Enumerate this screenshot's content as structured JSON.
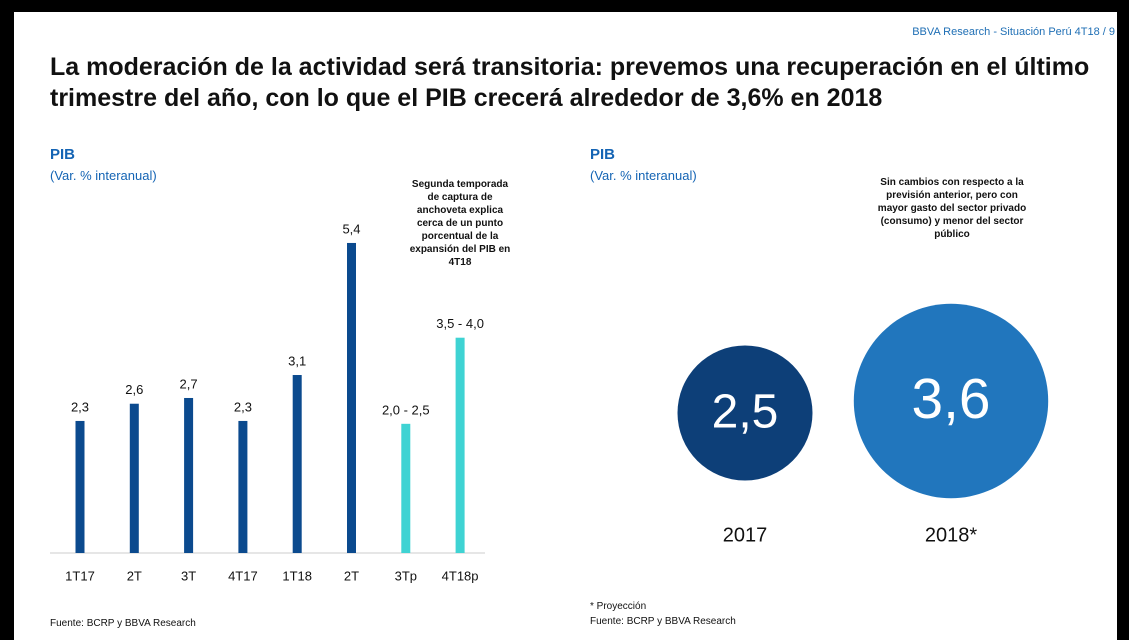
{
  "header": "BBVA Research - Situación Perú 4T18 / 9",
  "title": "La moderación de la actividad será transitoria: prevemos una recuperación en el último trimestre del año, con lo que el PIB crecerá alrededor de 3,6% en 2018",
  "chart_data": [
    {
      "type": "bar",
      "title": "PIB",
      "subtitle": "(Var. % interanual)",
      "categories": [
        "1T17",
        "2T",
        "3T",
        "4T17",
        "1T18",
        "2T",
        "3Tp",
        "4T18p"
      ],
      "values": [
        2.3,
        2.6,
        2.7,
        2.3,
        3.1,
        5.4,
        2.25,
        3.75
      ],
      "value_labels": [
        "2,3",
        "2,6",
        "2,7",
        "2,3",
        "3,1",
        "5,4",
        "2,0 - 2,5",
        "3,5 - 4,0"
      ],
      "colors": [
        "#0b4a8e",
        "#0b4a8e",
        "#0b4a8e",
        "#0b4a8e",
        "#0b4a8e",
        "#0b4a8e",
        "#3fd3d3",
        "#3fd3d3"
      ],
      "ylim": [
        0,
        5.8
      ],
      "annotation": "Segunda temporada de captura de anchoveta explica cerca de un punto porcentual de la expansión del PIB en 4T18",
      "source": "Fuente: BCRP y BBVA Research"
    },
    {
      "type": "bubble",
      "title": "PIB",
      "subtitle": "(Var. % interanual)",
      "categories": [
        "2017",
        "2018*"
      ],
      "values": [
        2.5,
        3.6
      ],
      "value_labels": [
        "2,5",
        "3,6"
      ],
      "colors": [
        "#0d3f78",
        "#2176bd"
      ],
      "annotation": "Sin cambios con respecto a la previsión anterior, pero con mayor gasto del sector privado (consumo) y menor del sector público",
      "note": "* Proyección",
      "source": "Fuente: BCRP y BBVA Research"
    }
  ]
}
